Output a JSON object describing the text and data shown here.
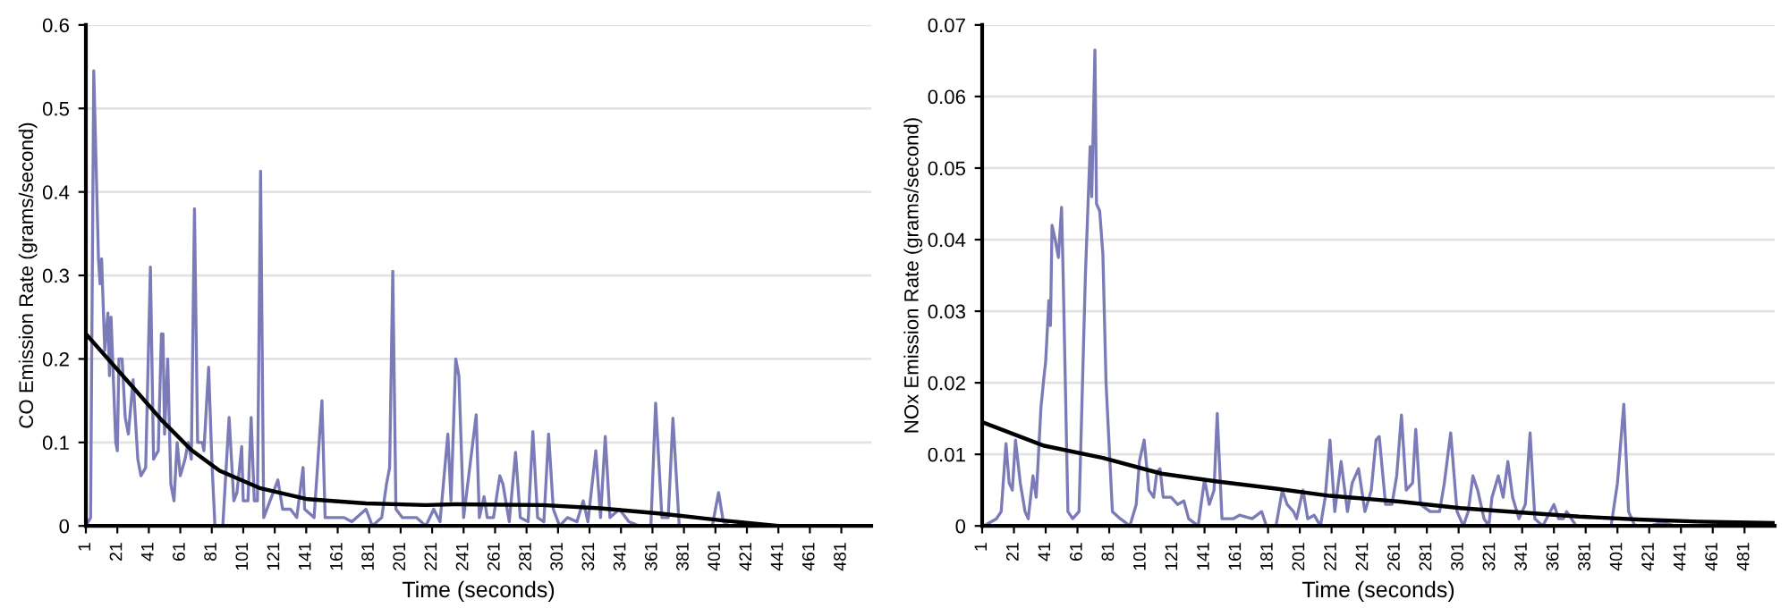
{
  "chart_data": [
    {
      "type": "line",
      "xlabel": "Time (seconds)",
      "ylabel": "CO Emission Rate (grams/second)",
      "xlim": [
        1,
        500
      ],
      "xticks": [
        1,
        21,
        41,
        61,
        81,
        101,
        121,
        141,
        161,
        181,
        201,
        221,
        241,
        261,
        281,
        301,
        321,
        341,
        361,
        381,
        401,
        421,
        441,
        461,
        481
      ],
      "ylim": [
        0,
        0.6
      ],
      "yticks": [
        0,
        0.1,
        0.2,
        0.3,
        0.4,
        0.5,
        0.6
      ],
      "grid": "y",
      "series": [
        {
          "color": "#7b7bb8",
          "x": [
            1,
            4,
            6,
            9,
            10,
            11,
            13,
            15,
            16,
            17,
            20,
            21,
            22,
            24,
            26,
            28,
            31,
            34,
            36,
            39,
            42,
            44,
            47,
            49,
            50,
            51,
            53,
            55,
            57,
            59,
            61,
            64,
            66,
            68,
            70,
            72,
            75,
            76,
            79,
            81,
            83,
            88,
            92,
            95,
            97,
            100,
            101,
            104,
            106,
            108,
            110,
            112,
            114,
            120,
            123,
            126,
            131,
            135,
            139,
            140,
            146,
            151,
            153,
            165,
            170,
            179,
            183,
            189,
            192,
            194,
            196,
            198,
            202,
            211,
            217,
            222,
            226,
            231,
            233,
            236,
            238,
            241,
            249,
            251,
            254,
            256,
            260,
            264,
            266,
            270,
            274,
            277,
            282,
            285,
            288,
            292,
            295,
            298,
            302,
            307,
            313,
            317,
            320,
            325,
            328,
            331,
            334,
            340,
            346,
            353,
            360,
            363,
            367,
            371,
            374,
            378,
            384,
            399,
            403,
            406,
            410,
            421,
            500
          ],
          "values": [
            0,
            0.01,
            0.545,
            0.32,
            0.29,
            0.32,
            0.21,
            0.255,
            0.18,
            0.25,
            0.1,
            0.09,
            0.2,
            0.2,
            0.13,
            0.11,
            0.175,
            0.08,
            0.06,
            0.07,
            0.31,
            0.08,
            0.09,
            0.23,
            0.23,
            0.11,
            0.2,
            0.05,
            0.03,
            0.1,
            0.06,
            0.08,
            0.1,
            0.08,
            0.38,
            0.1,
            0.1,
            0.09,
            0.19,
            0.08,
            0,
            0,
            0.13,
            0.03,
            0.04,
            0.095,
            0.03,
            0.03,
            0.13,
            0.03,
            0.03,
            0.425,
            0.01,
            0.04,
            0.055,
            0.02,
            0.02,
            0.01,
            0.07,
            0.02,
            0.01,
            0.15,
            0.01,
            0.01,
            0.005,
            0.02,
            0,
            0.01,
            0.05,
            0.07,
            0.305,
            0.02,
            0.01,
            0.01,
            0,
            0.02,
            0.005,
            0.11,
            0.03,
            0.2,
            0.18,
            0.01,
            0.133,
            0.01,
            0.035,
            0.01,
            0.01,
            0.06,
            0.05,
            0.005,
            0.088,
            0.01,
            0.005,
            0.113,
            0.01,
            0.005,
            0.11,
            0.02,
            0,
            0.01,
            0.005,
            0.03,
            0.005,
            0.09,
            0.01,
            0.107,
            0.01,
            0.02,
            0.005,
            0,
            0,
            0.147,
            0.01,
            0.01,
            0.129,
            0,
            0,
            0,
            0.04,
            0.005,
            0,
            0,
            0
          ]
        },
        {
          "color": "#000000",
          "x": [
            1,
            31,
            49,
            68,
            86,
            112,
            142,
            179,
            217,
            235,
            291,
            328,
            365,
            403,
            441,
            500
          ],
          "values": [
            0.23,
            0.166,
            0.127,
            0.091,
            0.066,
            0.045,
            0.032,
            0.027,
            0.025,
            0.026,
            0.025,
            0.021,
            0.015,
            0.007,
            0,
            0
          ]
        }
      ]
    },
    {
      "type": "line",
      "xlabel": "Time (seconds)",
      "ylabel": "NOx Emission Rate (grams/second)",
      "xlim": [
        1,
        500
      ],
      "xticks": [
        1,
        21,
        41,
        61,
        81,
        101,
        121,
        141,
        161,
        181,
        201,
        221,
        241,
        261,
        281,
        301,
        321,
        341,
        361,
        381,
        401,
        421,
        441,
        461,
        481
      ],
      "ylim": [
        0,
        0.07
      ],
      "yticks": [
        0,
        0.01,
        0.02,
        0.03,
        0.04,
        0.05,
        0.06,
        0.07
      ],
      "grid": "y",
      "series": [
        {
          "color": "#7b7bb8",
          "x": [
            2,
            10,
            13,
            16,
            18,
            20,
            22,
            25,
            28,
            30,
            33,
            35,
            36,
            38,
            40,
            41,
            43,
            44,
            45,
            47,
            49,
            51,
            52,
            55,
            58,
            62,
            66,
            69,
            70,
            72,
            73,
            75,
            77,
            79,
            83,
            88,
            94,
            98,
            100,
            103,
            106,
            109,
            111,
            113,
            115,
            120,
            124,
            128,
            131,
            137,
            141,
            144,
            147,
            149,
            152,
            159,
            163,
            171,
            177,
            180,
            186,
            190,
            193,
            197,
            199,
            203,
            206,
            210,
            214,
            217,
            220,
            223,
            227,
            231,
            234,
            238,
            242,
            246,
            249,
            251,
            255,
            259,
            262,
            265,
            268,
            272,
            274,
            277,
            283,
            289,
            292,
            296,
            300,
            304,
            307,
            310,
            313,
            317,
            320,
            322,
            326,
            329,
            332,
            335,
            339,
            343,
            346,
            349,
            354,
            361,
            364,
            367,
            369,
            375,
            384,
            397,
            401,
            405,
            408,
            412,
            422,
            429,
            437,
            499
          ],
          "values": [
            0,
            0.001,
            0.002,
            0.0115,
            0.006,
            0.005,
            0.012,
            0.006,
            0.002,
            0.001,
            0.007,
            0.004,
            0.008,
            0.0165,
            0.021,
            0.023,
            0.0315,
            0.028,
            0.042,
            0.04,
            0.0375,
            0.0445,
            0.035,
            0.002,
            0.001,
            0.002,
            0.035,
            0.053,
            0.046,
            0.0665,
            0.045,
            0.044,
            0.038,
            0.02,
            0.002,
            0.001,
            0,
            0.003,
            0.009,
            0.012,
            0.005,
            0.004,
            0.0075,
            0.008,
            0.004,
            0.004,
            0.003,
            0.0035,
            0.001,
            0,
            0.0065,
            0.003,
            0.005,
            0.0157,
            0.001,
            0.001,
            0.0015,
            0.001,
            0.002,
            0,
            0,
            0.005,
            0.003,
            0.002,
            0.001,
            0.005,
            0.001,
            0.0015,
            0,
            0.004,
            0.012,
            0.002,
            0.009,
            0.002,
            0.006,
            0.008,
            0.002,
            0.005,
            0.012,
            0.0125,
            0.003,
            0.003,
            0.007,
            0.0155,
            0.005,
            0.006,
            0.0135,
            0.003,
            0.002,
            0.002,
            0.006,
            0.013,
            0.002,
            0,
            0.002,
            0.007,
            0.005,
            0.001,
            0,
            0.004,
            0.007,
            0.004,
            0.009,
            0.004,
            0.001,
            0.003,
            0.013,
            0.001,
            0,
            0.003,
            0.001,
            0.001,
            0.002,
            0,
            0,
            0,
            0.006,
            0.017,
            0.002,
            0,
            0,
            0.0005,
            0,
            0
          ]
        },
        {
          "color": "#000000",
          "x": [
            1,
            40,
            77,
            114,
            149,
            186,
            220,
            264,
            302,
            339,
            377,
            414,
            452,
            499
          ],
          "values": [
            0.0145,
            0.0112,
            0.0095,
            0.0073,
            0.0062,
            0.0052,
            0.0042,
            0.0034,
            0.0025,
            0.0019,
            0.0013,
            0.0009,
            0.0006,
            0.0004
          ]
        }
      ]
    }
  ]
}
